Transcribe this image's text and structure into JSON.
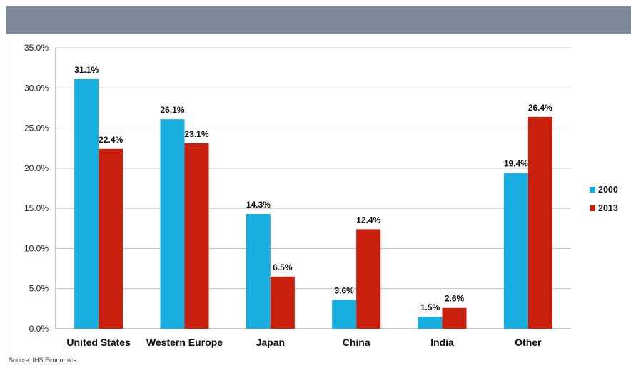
{
  "chart_data": {
    "type": "bar",
    "categories": [
      "United States",
      "Western Europe",
      "Japan",
      "China",
      "India",
      "Other"
    ],
    "series": [
      {
        "name": "2000",
        "values": [
          31.1,
          26.1,
          14.3,
          3.6,
          1.5,
          19.4
        ],
        "labels": [
          "31.1%",
          "26.1%",
          "14.3%",
          "3.6%",
          "1.5%",
          "19.4%"
        ],
        "color": "#18aee0"
      },
      {
        "name": "2013",
        "values": [
          22.4,
          23.1,
          6.5,
          12.4,
          2.6,
          26.4
        ],
        "labels": [
          "22.4%",
          "23.1%",
          "6.5%",
          "12.4%",
          "2.6%",
          "26.4%"
        ],
        "color": "#c8200c"
      }
    ],
    "yticks": [
      0,
      5,
      10,
      15,
      20,
      25,
      30,
      35
    ],
    "ytick_labels": [
      "0.0%",
      "5.0%",
      "10.0%",
      "15.0%",
      "20.0%",
      "25.0%",
      "30.0%",
      "35.0%"
    ],
    "ylim": [
      0,
      35
    ],
    "grid": true,
    "legend_position": "right",
    "source": "Source: IHS Economics"
  },
  "colors": {
    "header": "#7d8898",
    "gridline": "#bfbfbf"
  }
}
